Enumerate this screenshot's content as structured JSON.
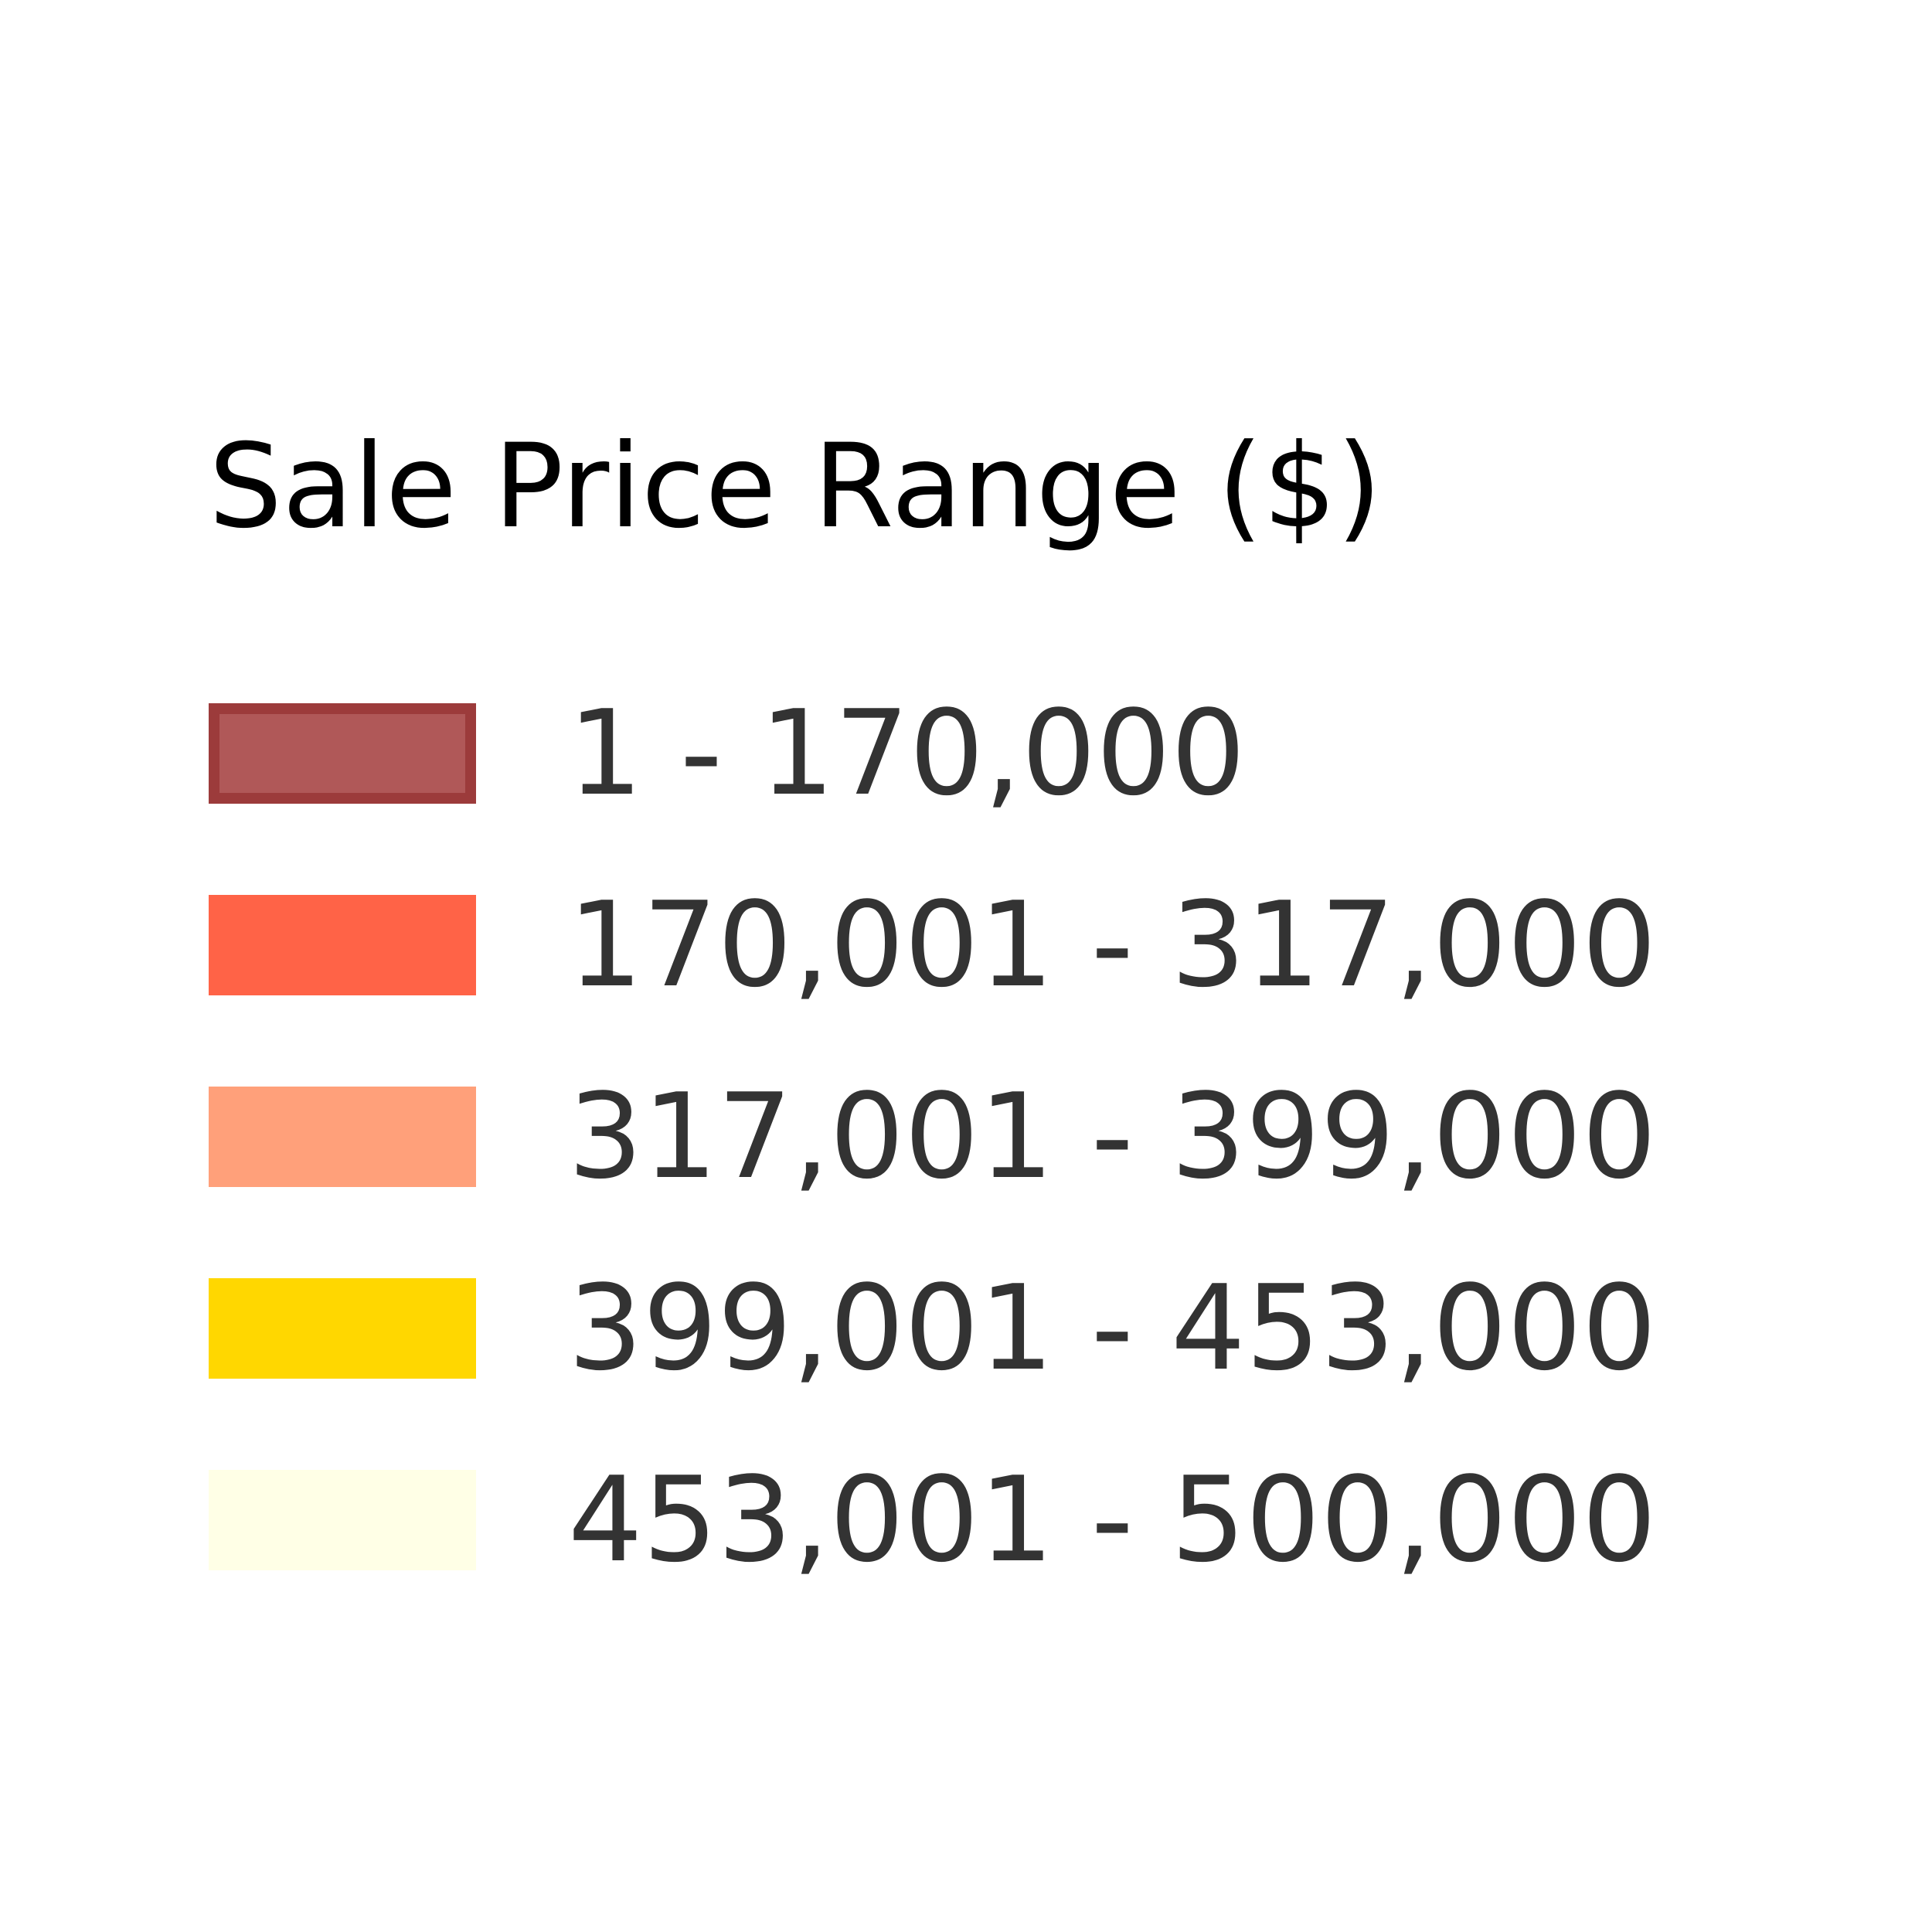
{
  "legend": {
    "title": "Sale Price Range ($)",
    "items": [
      {
        "label": "1 - 170,000",
        "color": "#a33b3b",
        "border": "#8b1a1a"
      },
      {
        "label": "170,001 - 317,000",
        "color": "#ff6347"
      },
      {
        "label": "317,001 - 399,000",
        "color": "#ffa07a"
      },
      {
        "label": "399,001 - 453,000",
        "color": "#ffd700"
      },
      {
        "label": "453,001 - 500,000",
        "color": "#ffffe6"
      }
    ]
  }
}
